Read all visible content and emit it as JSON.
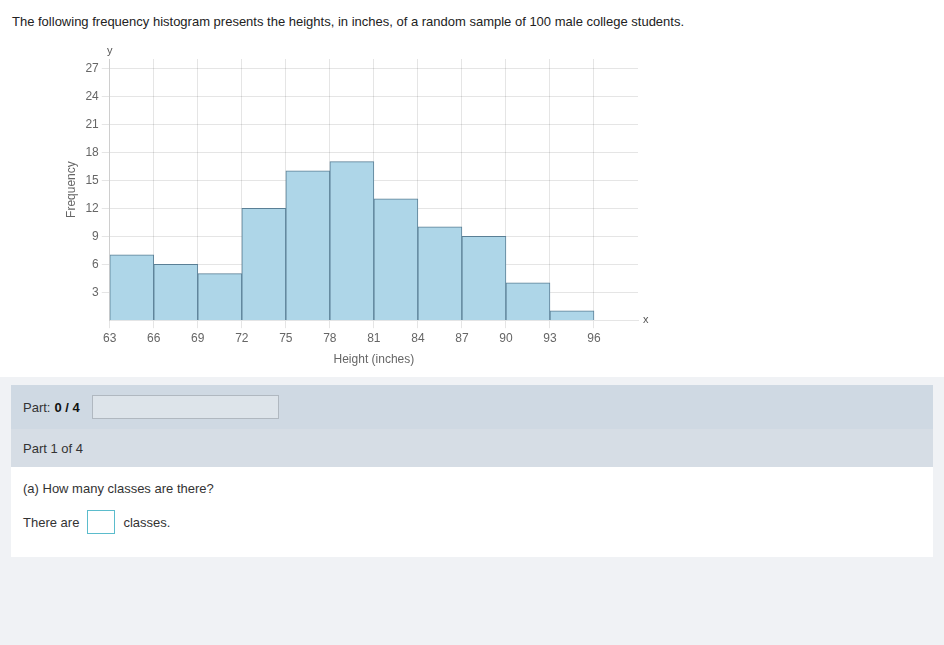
{
  "chart_data": {
    "type": "histogram",
    "title": "The following frequency histogram presents the heights, in inches, of a random sample of 100 male college students.",
    "bins": [
      63,
      66,
      69,
      72,
      75,
      78,
      81,
      84,
      87,
      90,
      93,
      96
    ],
    "values": [
      7,
      6,
      5,
      12,
      16,
      17,
      13,
      10,
      9,
      4,
      1
    ],
    "color": "#aed6e8",
    "xlabel": "Height (inches)",
    "ylabel": "Frequency",
    "xlim": [
      63,
      99
    ],
    "ylim": [
      0,
      28
    ],
    "xticks": [
      63,
      66,
      69,
      72,
      75,
      78,
      81,
      84,
      87,
      90,
      93,
      96
    ],
    "yticks": [
      3,
      6,
      9,
      12,
      15,
      18,
      21,
      24,
      27
    ],
    "grid": true,
    "annotations": [
      "y",
      "x",
      "Part:",
      "0 / 4",
      "Part 1 of 4",
      "(a) How many classes are there?",
      "There are",
      "classes."
    ]
  }
}
